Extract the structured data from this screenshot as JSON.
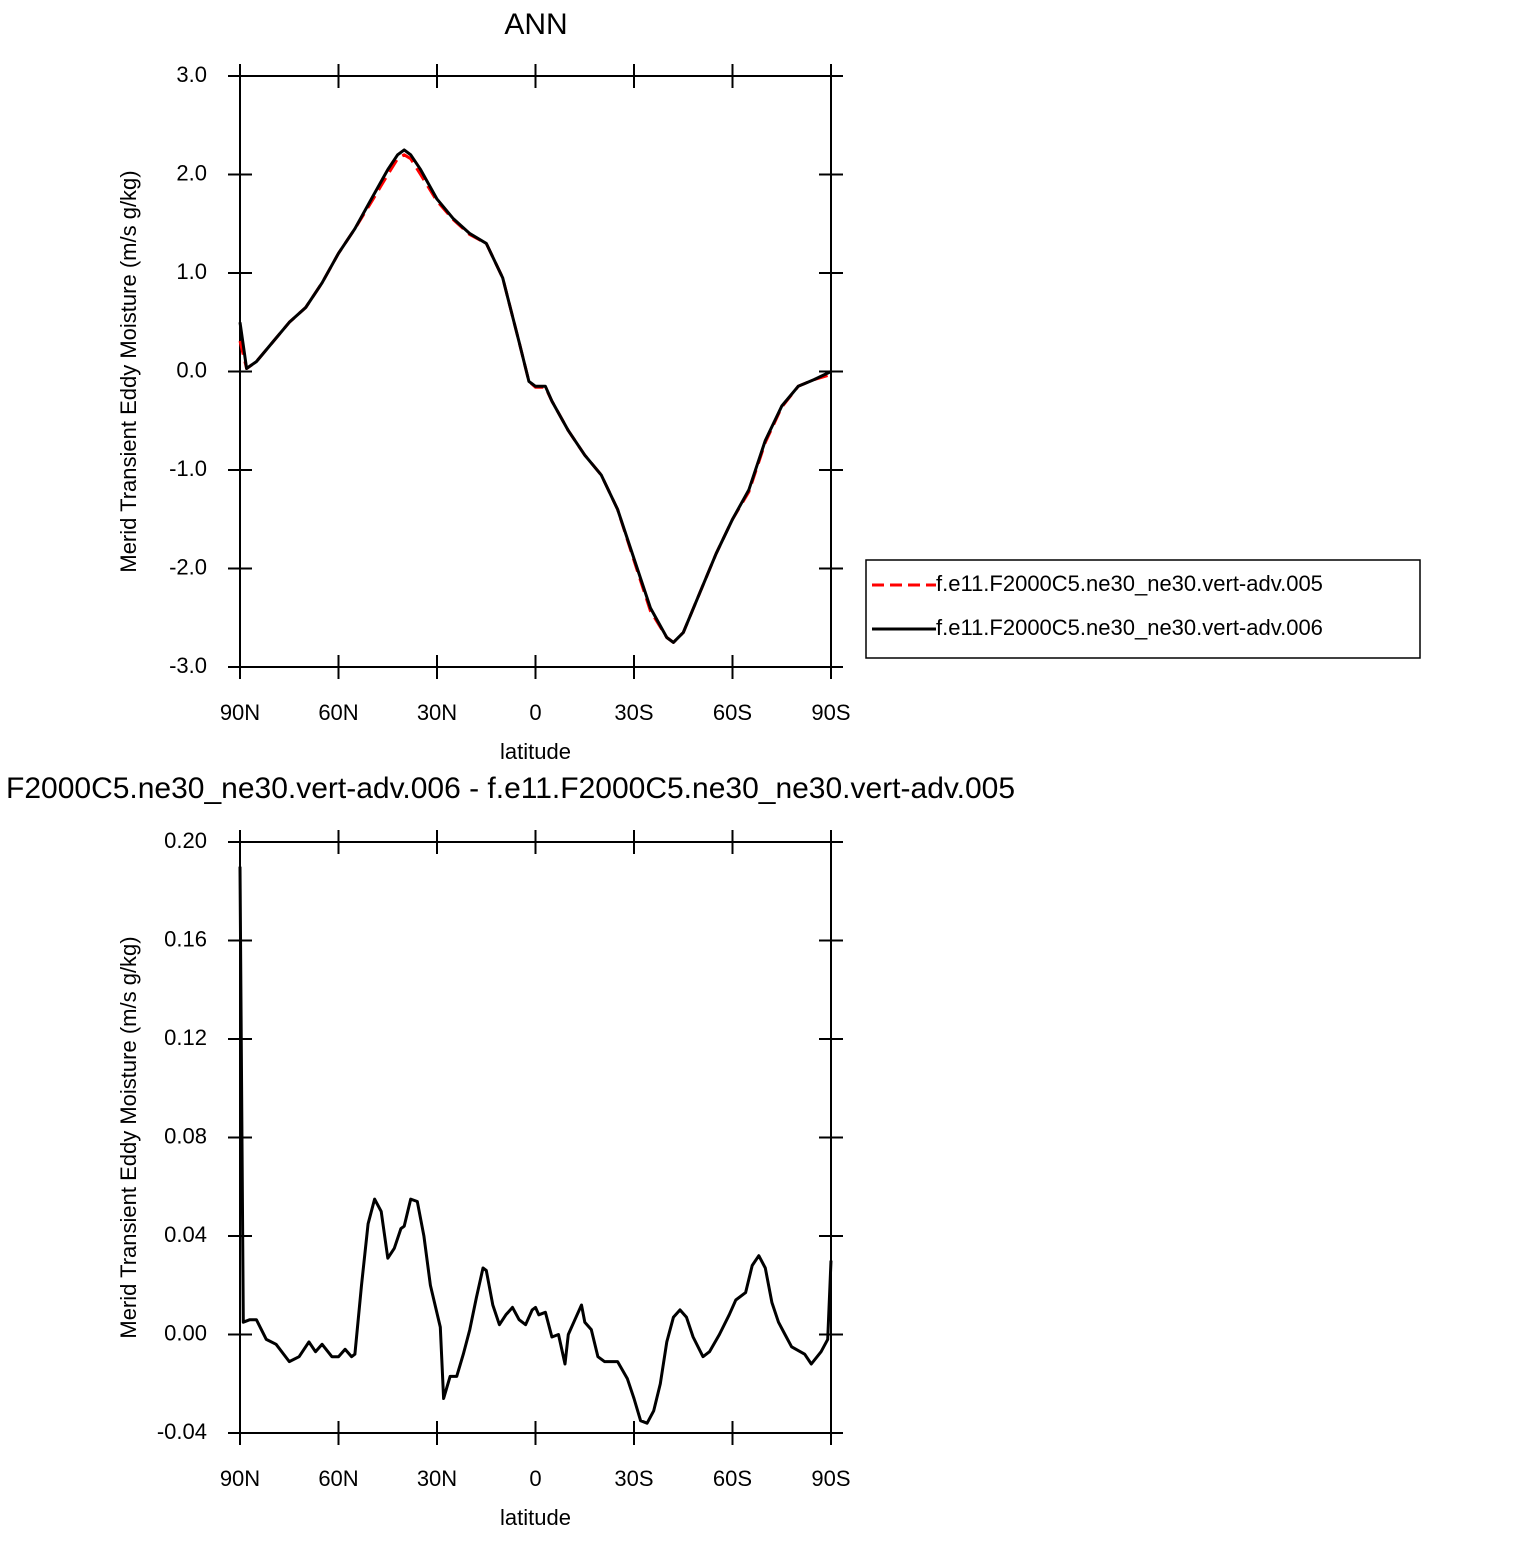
{
  "chart_data": [
    {
      "type": "line",
      "title": "ANN",
      "xlabel": "latitude",
      "ylabel": "Merid Transient Eddy Moisture (m/s g/kg)",
      "x": [
        90,
        88,
        85,
        80,
        75,
        70,
        65,
        60,
        55,
        50,
        45,
        42,
        40,
        38,
        35,
        30,
        25,
        20,
        15,
        10,
        5,
        2,
        0,
        -3,
        -5,
        -10,
        -15,
        -20,
        -25,
        -30,
        -35,
        -40,
        -42,
        -45,
        -50,
        -55,
        -60,
        -65,
        -70,
        -75,
        -80,
        -85,
        -90
      ],
      "xlim": [
        90,
        -90
      ],
      "xticks": [
        {
          "value": 90,
          "label": "90N"
        },
        {
          "value": 60,
          "label": "60N"
        },
        {
          "value": 30,
          "label": "30N"
        },
        0,
        {
          "value": -30,
          "label": "30S"
        },
        {
          "value": -60,
          "label": "60S"
        },
        {
          "value": -90,
          "label": "90S"
        }
      ],
      "ylim": [
        -3,
        3
      ],
      "yticks": [
        {
          "value": -3,
          "label": "-3.0"
        },
        {
          "value": -2,
          "label": "-2.0"
        },
        {
          "value": -1,
          "label": "-1.0"
        },
        {
          "value": 0,
          "label": "0.0"
        },
        {
          "value": 1,
          "label": "1.0"
        },
        {
          "value": 2,
          "label": "2.0"
        },
        {
          "value": 3,
          "label": "3.0"
        }
      ],
      "series": [
        {
          "name": "f.e11.F2000C5.ne30_ne30.vert-adv.005",
          "color": "#ff0000",
          "dash": true,
          "values": [
            0.31,
            0.03,
            0.1,
            0.3,
            0.5,
            0.65,
            0.9,
            1.2,
            1.45,
            1.72,
            2.0,
            2.16,
            2.2,
            2.16,
            2.0,
            1.73,
            1.54,
            1.39,
            1.3,
            0.95,
            0.3,
            -0.1,
            -0.16,
            -0.16,
            -0.3,
            -0.6,
            -0.85,
            -1.05,
            -1.4,
            -1.92,
            -2.43,
            -2.7,
            -2.75,
            -2.65,
            -2.25,
            -1.85,
            -1.5,
            -1.22,
            -0.72,
            -0.36,
            -0.15,
            -0.08,
            -0.03
          ]
        },
        {
          "name": "f.e11.F2000C5.ne30_ne30.vert-adv.006",
          "color": "#000000",
          "dash": false,
          "values": [
            0.5,
            0.03,
            0.1,
            0.3,
            0.5,
            0.65,
            0.9,
            1.2,
            1.45,
            1.75,
            2.05,
            2.2,
            2.25,
            2.2,
            2.05,
            1.75,
            1.55,
            1.4,
            1.3,
            0.95,
            0.3,
            -0.1,
            -0.15,
            -0.15,
            -0.3,
            -0.6,
            -0.85,
            -1.05,
            -1.4,
            -1.9,
            -2.4,
            -2.7,
            -2.75,
            -2.65,
            -2.25,
            -1.85,
            -1.5,
            -1.2,
            -0.7,
            -0.35,
            -0.15,
            -0.08,
            0.0
          ]
        }
      ]
    },
    {
      "type": "line",
      "title": "F2000C5.ne30_ne30.vert-adv.006 - f.e11.F2000C5.ne30_ne30.vert-adv.005",
      "xlabel": "latitude",
      "ylabel": "Merid Transient Eddy Moisture (m/s g/kg)",
      "x": [
        90,
        89,
        87,
        85,
        82,
        79,
        75,
        72,
        69,
        67,
        65,
        62,
        60,
        58,
        56,
        55,
        53,
        51,
        49,
        47,
        45,
        43,
        41,
        40,
        38,
        36,
        34,
        32,
        29,
        28,
        26,
        24,
        22,
        20,
        18,
        16,
        15,
        13,
        11,
        9,
        7,
        5,
        3,
        1,
        0,
        -1,
        -3,
        -5,
        -7,
        -9,
        -10,
        -12,
        -14,
        -15,
        -17,
        -19,
        -21,
        -25,
        -28,
        -30,
        -32,
        -34,
        -36,
        -38,
        -40,
        -42,
        -44,
        -46,
        -48,
        -51,
        -53,
        -56,
        -59,
        -61,
        -64,
        -66,
        -68,
        -70,
        -72,
        -74,
        -76,
        -78,
        -82,
        -84,
        -87,
        -89,
        -90
      ],
      "xlim": [
        90,
        -90
      ],
      "xticks": [
        {
          "value": 90,
          "label": "90N"
        },
        {
          "value": 60,
          "label": "60N"
        },
        {
          "value": 30,
          "label": "30N"
        },
        0,
        {
          "value": -30,
          "label": "30S"
        },
        {
          "value": -60,
          "label": "60S"
        },
        {
          "value": -90,
          "label": "90S"
        }
      ],
      "ylim": [
        -0.04,
        0.2
      ],
      "yticks": [
        -0.04,
        {
          "value": 0,
          "label": "0.00"
        },
        0.04,
        0.08,
        0.12,
        0.16,
        {
          "value": 0.2,
          "label": "0.20"
        }
      ],
      "series": [
        {
          "color": "#000000",
          "dash": false,
          "values": [
            0.19,
            0.005,
            0.006,
            0.006,
            -0.002,
            -0.004,
            -0.011,
            -0.009,
            -0.003,
            -0.007,
            -0.004,
            -0.009,
            -0.009,
            -0.006,
            -0.009,
            -0.008,
            0.02,
            0.045,
            0.055,
            0.05,
            0.031,
            0.035,
            0.043,
            0.044,
            0.055,
            0.054,
            0.04,
            0.02,
            0.003,
            -0.026,
            -0.017,
            -0.017,
            -0.008,
            0.002,
            0.015,
            0.027,
            0.026,
            0.012,
            0.004,
            0.008,
            0.011,
            0.006,
            0.004,
            0.01,
            0.011,
            0.008,
            0.009,
            -0.001,
            0.0,
            -0.012,
            0.0,
            0.006,
            0.012,
            0.005,
            0.002,
            -0.009,
            -0.011,
            -0.011,
            -0.018,
            -0.026,
            -0.035,
            -0.036,
            -0.031,
            -0.02,
            -0.003,
            0.007,
            0.01,
            0.007,
            -0.001,
            -0.009,
            -0.007,
            0.0,
            0.008,
            0.014,
            0.017,
            0.028,
            0.032,
            0.027,
            0.013,
            0.005,
            0.0,
            -0.005,
            -0.008,
            -0.012,
            -0.007,
            -0.002,
            0.03
          ]
        }
      ]
    }
  ]
}
